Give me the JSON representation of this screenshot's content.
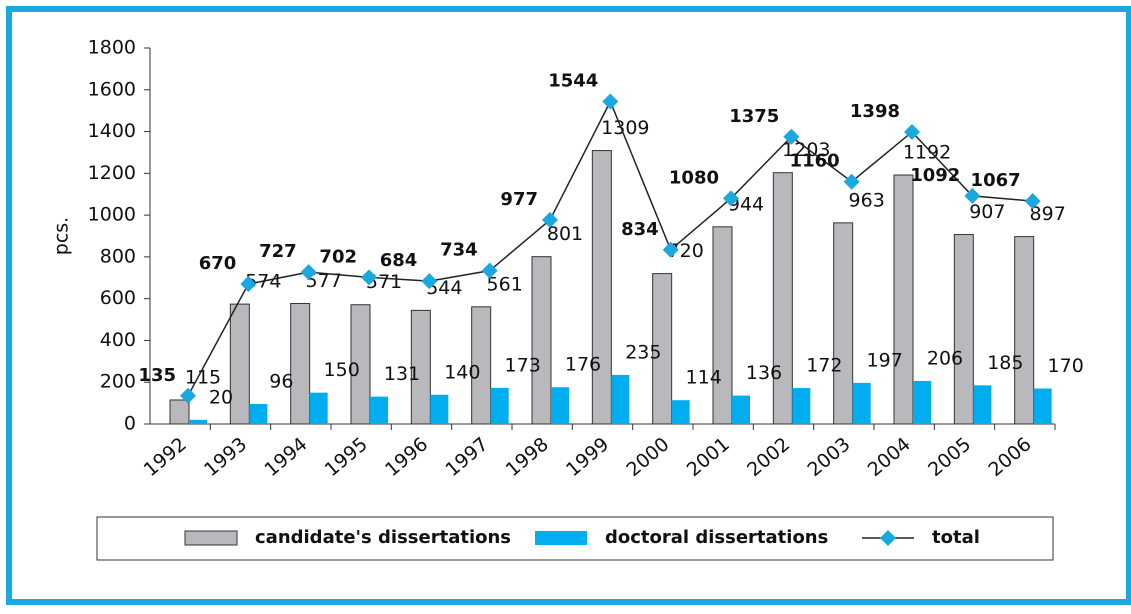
{
  "chart_data": {
    "type": "bar-line",
    "y_label": "pcs.",
    "categories": [
      "1992",
      "1993",
      "1994",
      "1995",
      "1996",
      "1997",
      "1998",
      "1999",
      "2000",
      "2001",
      "2002",
      "2003",
      "2004",
      "2005",
      "2006"
    ],
    "series": [
      {
        "name": "candidate's dissertations",
        "type": "bar",
        "color": "#b9b9bd",
        "values": [
          115,
          574,
          577,
          571,
          544,
          561,
          801,
          1309,
          720,
          944,
          1203,
          963,
          1192,
          907,
          897
        ]
      },
      {
        "name": "doctoral dissertations",
        "type": "bar",
        "color": "#00aeef",
        "values": [
          20,
          96,
          150,
          131,
          140,
          173,
          176,
          235,
          114,
          136,
          172,
          197,
          206,
          185,
          170
        ]
      },
      {
        "name": "total",
        "type": "line",
        "color": "#1ba8e0",
        "values": [
          135,
          670,
          727,
          702,
          684,
          734,
          977,
          1544,
          834,
          1080,
          1375,
          1160,
          1398,
          1092,
          1067
        ]
      }
    ],
    "ylim": [
      0,
      1800
    ],
    "yticks": [
      0,
      200,
      400,
      600,
      800,
      1000,
      1200,
      1400,
      1600,
      1800
    ],
    "legend": "bottom"
  }
}
